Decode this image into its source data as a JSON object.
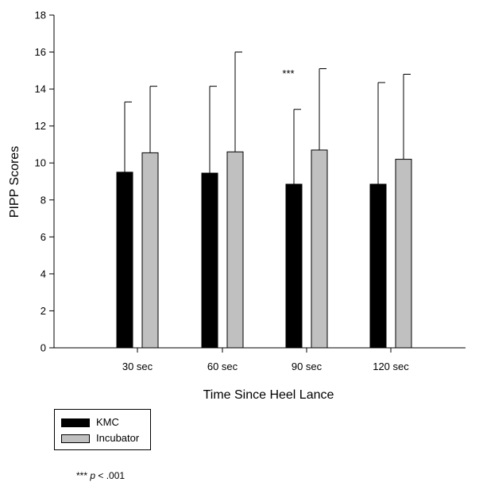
{
  "chart_data": {
    "type": "bar",
    "categories": [
      "30 sec",
      "60 sec",
      "90 sec",
      "120 sec"
    ],
    "series": [
      {
        "name": "KMC",
        "color": "#000000",
        "values": [
          9.5,
          9.45,
          8.85,
          8.85
        ],
        "error_upper": [
          13.3,
          14.15,
          12.9,
          14.35
        ]
      },
      {
        "name": "Incubator",
        "color": "#c0c0c0",
        "values": [
          10.55,
          10.6,
          10.7,
          10.2
        ],
        "error_upper": [
          14.15,
          16.0,
          15.1,
          14.8
        ]
      }
    ],
    "xlabel": "Time Since Heel Lance",
    "ylabel": "PIPP Scores",
    "ylim": [
      0,
      18
    ],
    "yticks": [
      0,
      2,
      4,
      6,
      8,
      10,
      12,
      14,
      16,
      18
    ],
    "grid": false,
    "legend": "bottom-left",
    "annotations": [
      {
        "category": "90 sec",
        "text": "***"
      }
    ]
  },
  "footnote": {
    "stars": "***",
    "p": "p",
    "rest": " < .001"
  }
}
